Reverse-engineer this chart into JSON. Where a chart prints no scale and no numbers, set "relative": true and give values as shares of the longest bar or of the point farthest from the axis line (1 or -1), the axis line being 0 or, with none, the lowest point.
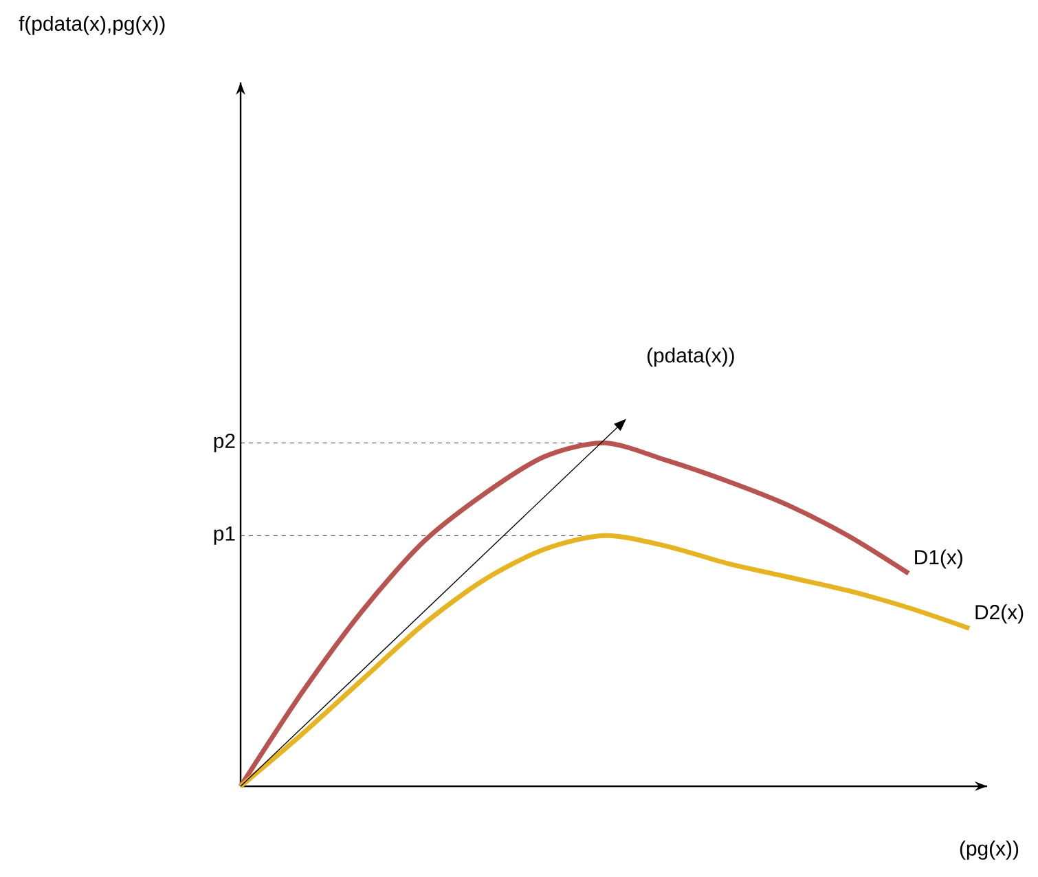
{
  "chart_data": {
    "type": "line",
    "relative": true,
    "xlabel": "(pg(x))",
    "categories": [
      null,
      null,
      null,
      null,
      null,
      null,
      null,
      null,
      null,
      null,
      null,
      null,
      null
    ],
    "series": [
      {
        "name": "D1(x)",
        "color": "#b85450",
        "values": [
          0,
          0.27,
          0.51,
          0.71,
          0.85,
          0.96,
          1.0,
          0.95,
          0.89,
          0.82,
          0.73,
          0.62,
          null
        ]
      },
      {
        "name": "D2(x)",
        "color": "#e6b422",
        "values": [
          0,
          0.15,
          0.31,
          0.47,
          0.6,
          0.69,
          0.73,
          0.7,
          0.65,
          0.61,
          0.57,
          0.52,
          0.46
        ]
      }
    ],
    "ref_lines": [
      {
        "axis": "y",
        "value": 1.0,
        "label": "p2",
        "line_style": "dashed"
      },
      {
        "axis": "y",
        "value": 0.73,
        "label": "p1",
        "line_style": "dashed"
      }
    ],
    "annotations": [
      "(pdata(x))",
      "f(pdata(x),pg(x))"
    ],
    "legend": false,
    "marker": "none",
    "line_style": "solid"
  }
}
